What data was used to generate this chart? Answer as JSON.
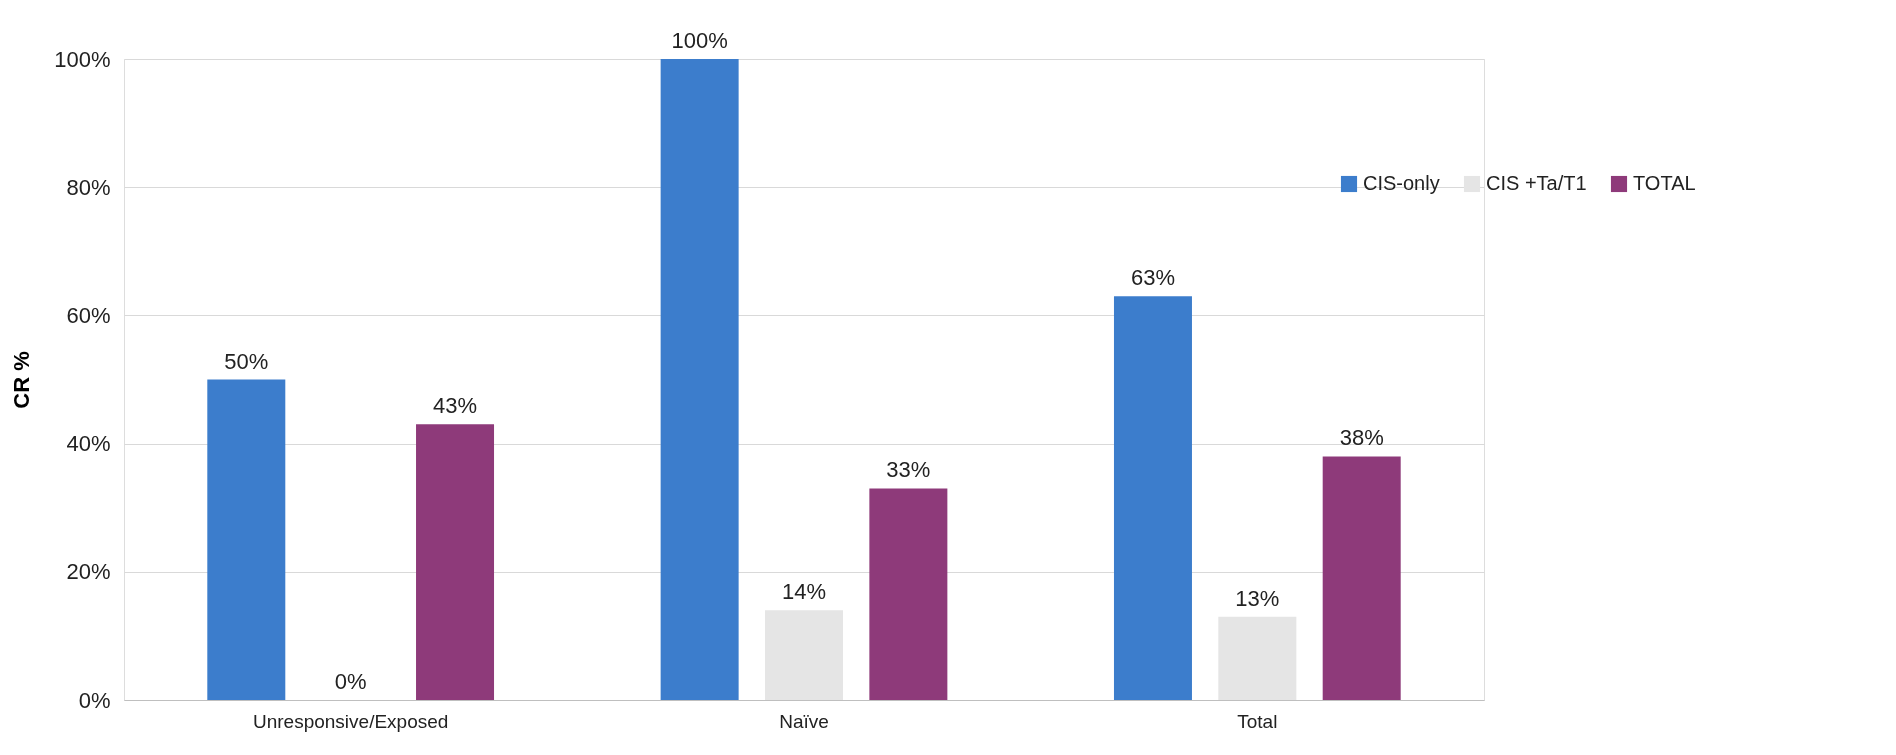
{
  "chart_data": {
    "type": "bar",
    "ylabel": "CR %",
    "categories": [
      "Unresponsive/Exposed",
      "Naïve",
      "Total"
    ],
    "series": [
      {
        "name": "CIS-only",
        "color": "#3c7dcc",
        "values": [
          50,
          100,
          63
        ],
        "value_labels": [
          "50%",
          "100%",
          "63%"
        ]
      },
      {
        "name": "CIS +Ta/T1",
        "color": "#e5e5e5",
        "values": [
          0,
          14,
          13
        ],
        "value_labels": [
          "0%",
          "14%",
          "13%"
        ]
      },
      {
        "name": "TOTAL",
        "color": "#8e3a7a",
        "values": [
          43,
          33,
          38
        ],
        "value_labels": [
          "43%",
          "33%",
          "38%"
        ]
      }
    ],
    "ylim": [
      0,
      100
    ],
    "yticks": [
      {
        "value": 0,
        "label": "0%"
      },
      {
        "value": 20,
        "label": "20%"
      },
      {
        "value": 40,
        "label": "40%"
      },
      {
        "value": 60,
        "label": "60%"
      },
      {
        "value": 80,
        "label": "80%"
      },
      {
        "value": 100,
        "label": "100%"
      }
    ],
    "grid": "y",
    "legend": "top right"
  }
}
